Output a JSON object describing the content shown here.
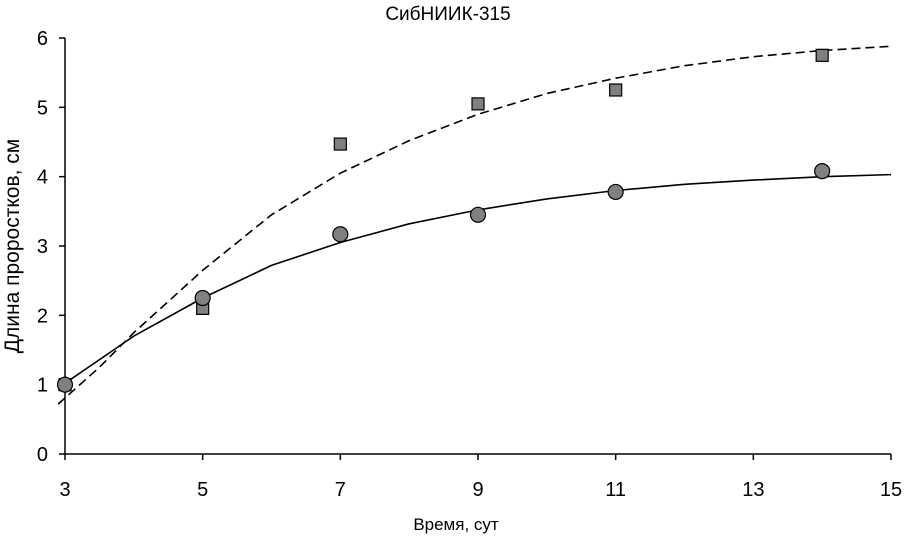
{
  "chart_data": {
    "type": "scatter",
    "title": "СибНИИК-315",
    "xlabel": "Время, сут",
    "ylabel": "Длина проростков, см",
    "xlim": [
      3,
      15
    ],
    "ylim": [
      0,
      6
    ],
    "xticks": [
      "3",
      "5",
      "7",
      "9",
      "11",
      "13",
      "15"
    ],
    "yticks": [
      "0",
      "1",
      "2",
      "3",
      "4",
      "5",
      "6"
    ],
    "grid": false,
    "legend": "none",
    "series": [
      {
        "marker": "square",
        "color": "#808080",
        "x": [
          3,
          5,
          7,
          9,
          11,
          14
        ],
        "y": [
          1.0,
          2.1,
          4.47,
          5.05,
          5.25,
          5.75
        ],
        "trend": {
          "style": "dashed",
          "x": [
            2.9,
            3.5,
            4,
            5,
            6,
            7,
            8,
            9,
            10,
            11,
            12,
            13,
            14,
            15
          ],
          "y": [
            0.72,
            1.25,
            1.75,
            2.65,
            3.45,
            4.05,
            4.52,
            4.9,
            5.2,
            5.42,
            5.6,
            5.73,
            5.82,
            5.88
          ]
        }
      },
      {
        "marker": "circle",
        "color": "#808080",
        "x": [
          3,
          5,
          7,
          9,
          11,
          14
        ],
        "y": [
          1.0,
          2.25,
          3.17,
          3.45,
          3.78,
          4.08
        ],
        "trend": {
          "style": "solid",
          "x": [
            3,
            4,
            5,
            6,
            7,
            8,
            9,
            10,
            11,
            12,
            13,
            14,
            15
          ],
          "y": [
            1.02,
            1.7,
            2.25,
            2.72,
            3.05,
            3.32,
            3.52,
            3.68,
            3.8,
            3.89,
            3.95,
            4.0,
            4.03
          ]
        }
      }
    ]
  }
}
